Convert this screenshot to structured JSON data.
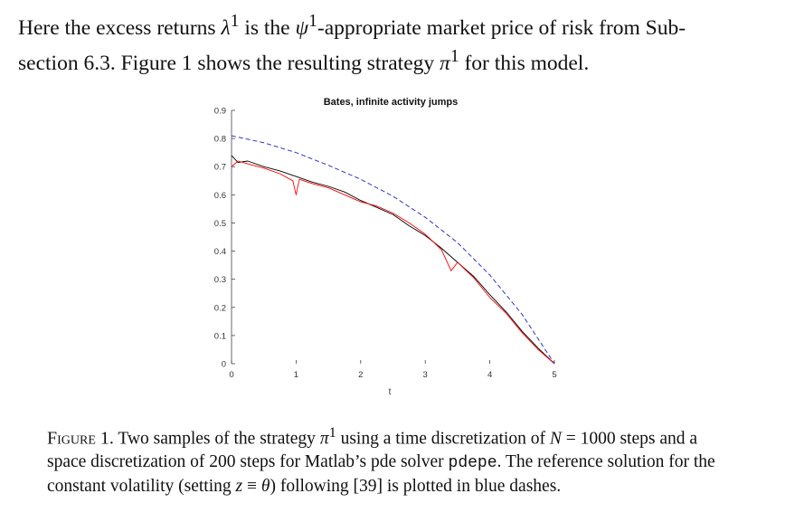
{
  "paragraph": {
    "line1_a": "Here the excess returns ",
    "lambda": "λ",
    "sup1": "1",
    "line1_b": " is the ",
    "psi": "ψ",
    "sup2": "1",
    "line1_c": "-appropriate market price of risk from Sub-",
    "line2_a": "section 6.3. Figure 1 shows the resulting strategy ",
    "pi": "π",
    "sup3": "1",
    "line2_b": " for this model."
  },
  "caption": {
    "label": "Figure 1.",
    "text_a": " Two samples of the strategy ",
    "pi": "π",
    "sup": "1",
    "text_b": " using a time discretization of ",
    "N": "N",
    "text_c": " = 1000 steps and a space discretization of 200 steps for Matlab’s pde solver ",
    "code": "pdepe",
    "text_d": ". The reference solution for the constant volatility (setting ",
    "z": "z",
    "text_e": " ≡ ",
    "theta": "θ",
    "text_f": ") following [39] is plotted in blue dashes."
  },
  "chart_data": {
    "type": "line",
    "title": "Bates, infinite activity jumps",
    "xlabel": "t",
    "ylabel": "",
    "xlim": [
      0,
      5
    ],
    "ylim": [
      0,
      0.9
    ],
    "xticks": [
      "0",
      "1",
      "2",
      "3",
      "4",
      "5"
    ],
    "yticks": [
      "0",
      "0.1",
      "0.2",
      "0.3",
      "0.4",
      "0.5",
      "0.6",
      "0.7",
      "0.8",
      "0.9"
    ],
    "grid": false,
    "legend": "none",
    "colors": {
      "series1": "#000000",
      "series2": "#ff0000",
      "reference": "#3333cc"
    },
    "series": [
      {
        "style": "solid",
        "color": "#000000",
        "x": [
          0,
          0.1,
          0.25,
          0.5,
          0.75,
          1.0,
          1.25,
          1.5,
          1.75,
          2.0,
          2.25,
          2.5,
          2.75,
          3.0,
          3.25,
          3.5,
          3.75,
          4.0,
          4.25,
          4.5,
          4.75,
          5.0
        ],
        "y": [
          0.74,
          0.715,
          0.72,
          0.7,
          0.685,
          0.665,
          0.645,
          0.63,
          0.61,
          0.58,
          0.555,
          0.53,
          0.49,
          0.455,
          0.41,
          0.36,
          0.31,
          0.245,
          0.185,
          0.115,
          0.055,
          0.0
        ]
      },
      {
        "style": "solid",
        "color": "#ff0000",
        "x": [
          0,
          0.1,
          0.25,
          0.5,
          0.75,
          0.95,
          1.0,
          1.05,
          1.25,
          1.5,
          1.75,
          2.0,
          2.25,
          2.5,
          2.75,
          3.0,
          3.25,
          3.4,
          3.5,
          3.75,
          4.0,
          4.25,
          4.5,
          4.75,
          5.0
        ],
        "y": [
          0.7,
          0.72,
          0.71,
          0.695,
          0.675,
          0.65,
          0.6,
          0.655,
          0.64,
          0.625,
          0.6,
          0.575,
          0.56,
          0.535,
          0.5,
          0.46,
          0.405,
          0.33,
          0.36,
          0.305,
          0.235,
          0.18,
          0.11,
          0.05,
          0.0
        ]
      },
      {
        "style": "dashed",
        "color": "#3333cc",
        "x": [
          0,
          0.5,
          1.0,
          1.5,
          2.0,
          2.5,
          3.0,
          3.5,
          4.0,
          4.5,
          5.0
        ],
        "y": [
          0.81,
          0.785,
          0.75,
          0.705,
          0.655,
          0.595,
          0.52,
          0.43,
          0.315,
          0.175,
          0.0
        ]
      }
    ]
  }
}
